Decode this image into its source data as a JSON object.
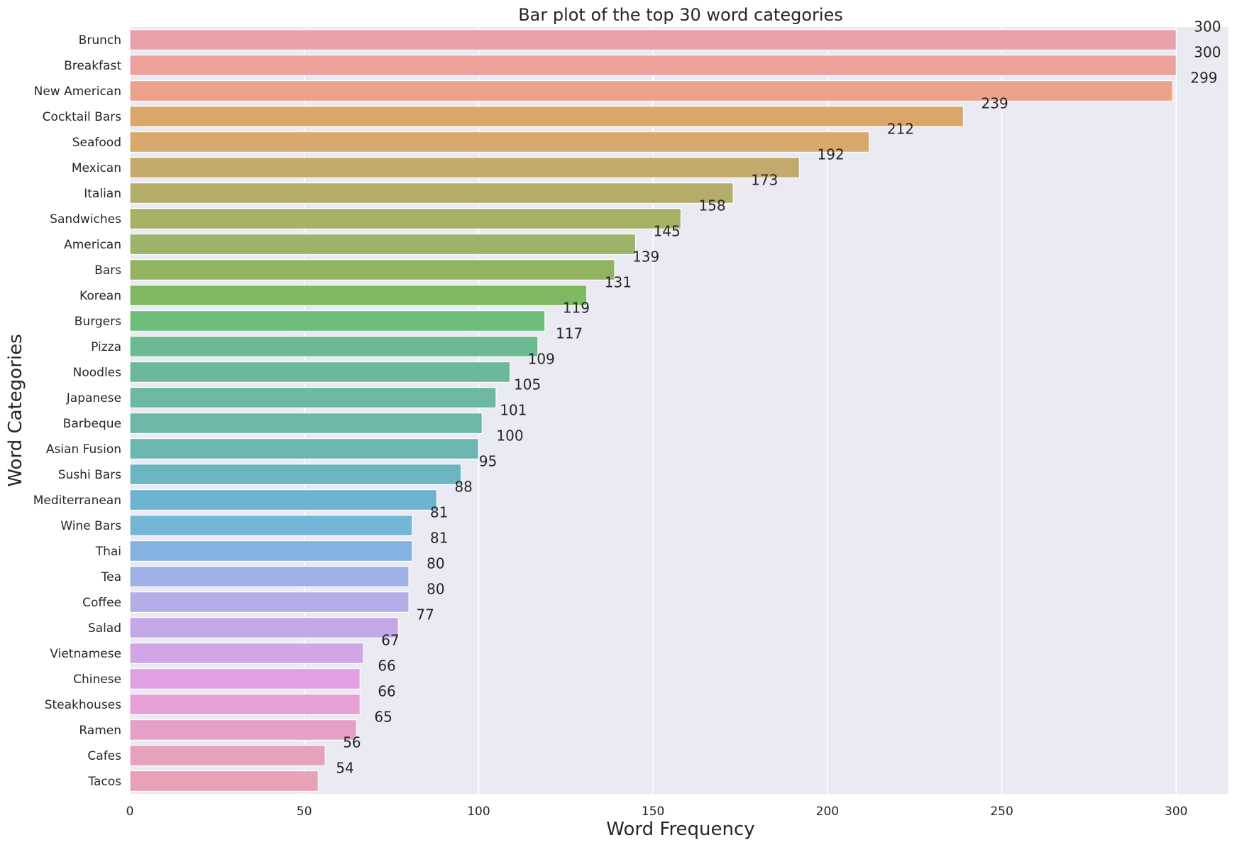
{
  "chart_data": {
    "type": "bar",
    "orientation": "horizontal",
    "title": "Bar plot of the top 30 word categories",
    "xlabel": "Word Frequency",
    "ylabel": "Word Categories",
    "xlim": [
      0,
      315
    ],
    "xticks": [
      0,
      50,
      100,
      150,
      200,
      250,
      300
    ],
    "grid": true,
    "legend": "none",
    "background_color": "#eaeaf2",
    "categories": [
      "Brunch",
      "Breakfast",
      "New American",
      "Cocktail Bars",
      "Seafood",
      "Mexican",
      "Italian",
      "Sandwiches",
      "American",
      "Bars",
      "Korean",
      "Burgers",
      "Pizza",
      "Noodles",
      "Japanese",
      "Barbeque",
      "Asian Fusion",
      "Sushi Bars",
      "Mediterranean",
      "Wine Bars",
      "Thai",
      "Tea",
      "Coffee",
      "Salad",
      "Vietnamese",
      "Chinese",
      "Steakhouses",
      "Ramen",
      "Cafes",
      "Tacos"
    ],
    "values": [
      300,
      300,
      299,
      239,
      212,
      192,
      173,
      158,
      145,
      139,
      131,
      119,
      117,
      109,
      105,
      101,
      100,
      95,
      88,
      81,
      81,
      80,
      80,
      77,
      67,
      66,
      66,
      65,
      56,
      54
    ],
    "colors": [
      "#eba1aa",
      "#eba29a",
      "#eba289",
      "#dba66a",
      "#d8a96c",
      "#c4aa6a",
      "#b4ad6a",
      "#a8b064",
      "#9cb36a",
      "#92b462",
      "#7eb95f",
      "#6cbc7a",
      "#6cbb90",
      "#6cb99a",
      "#6cb8a2",
      "#6cb7a8",
      "#6cb6b2",
      "#6cb6c2",
      "#6cb3d2",
      "#74b6d8",
      "#84b2e0",
      "#9fb0e6",
      "#b2aee8",
      "#c2a8e6",
      "#d2a6e6",
      "#e2a0e4",
      "#e6a0d6",
      "#e6a0c8",
      "#e6a2ba",
      "#e8a2b8"
    ]
  }
}
